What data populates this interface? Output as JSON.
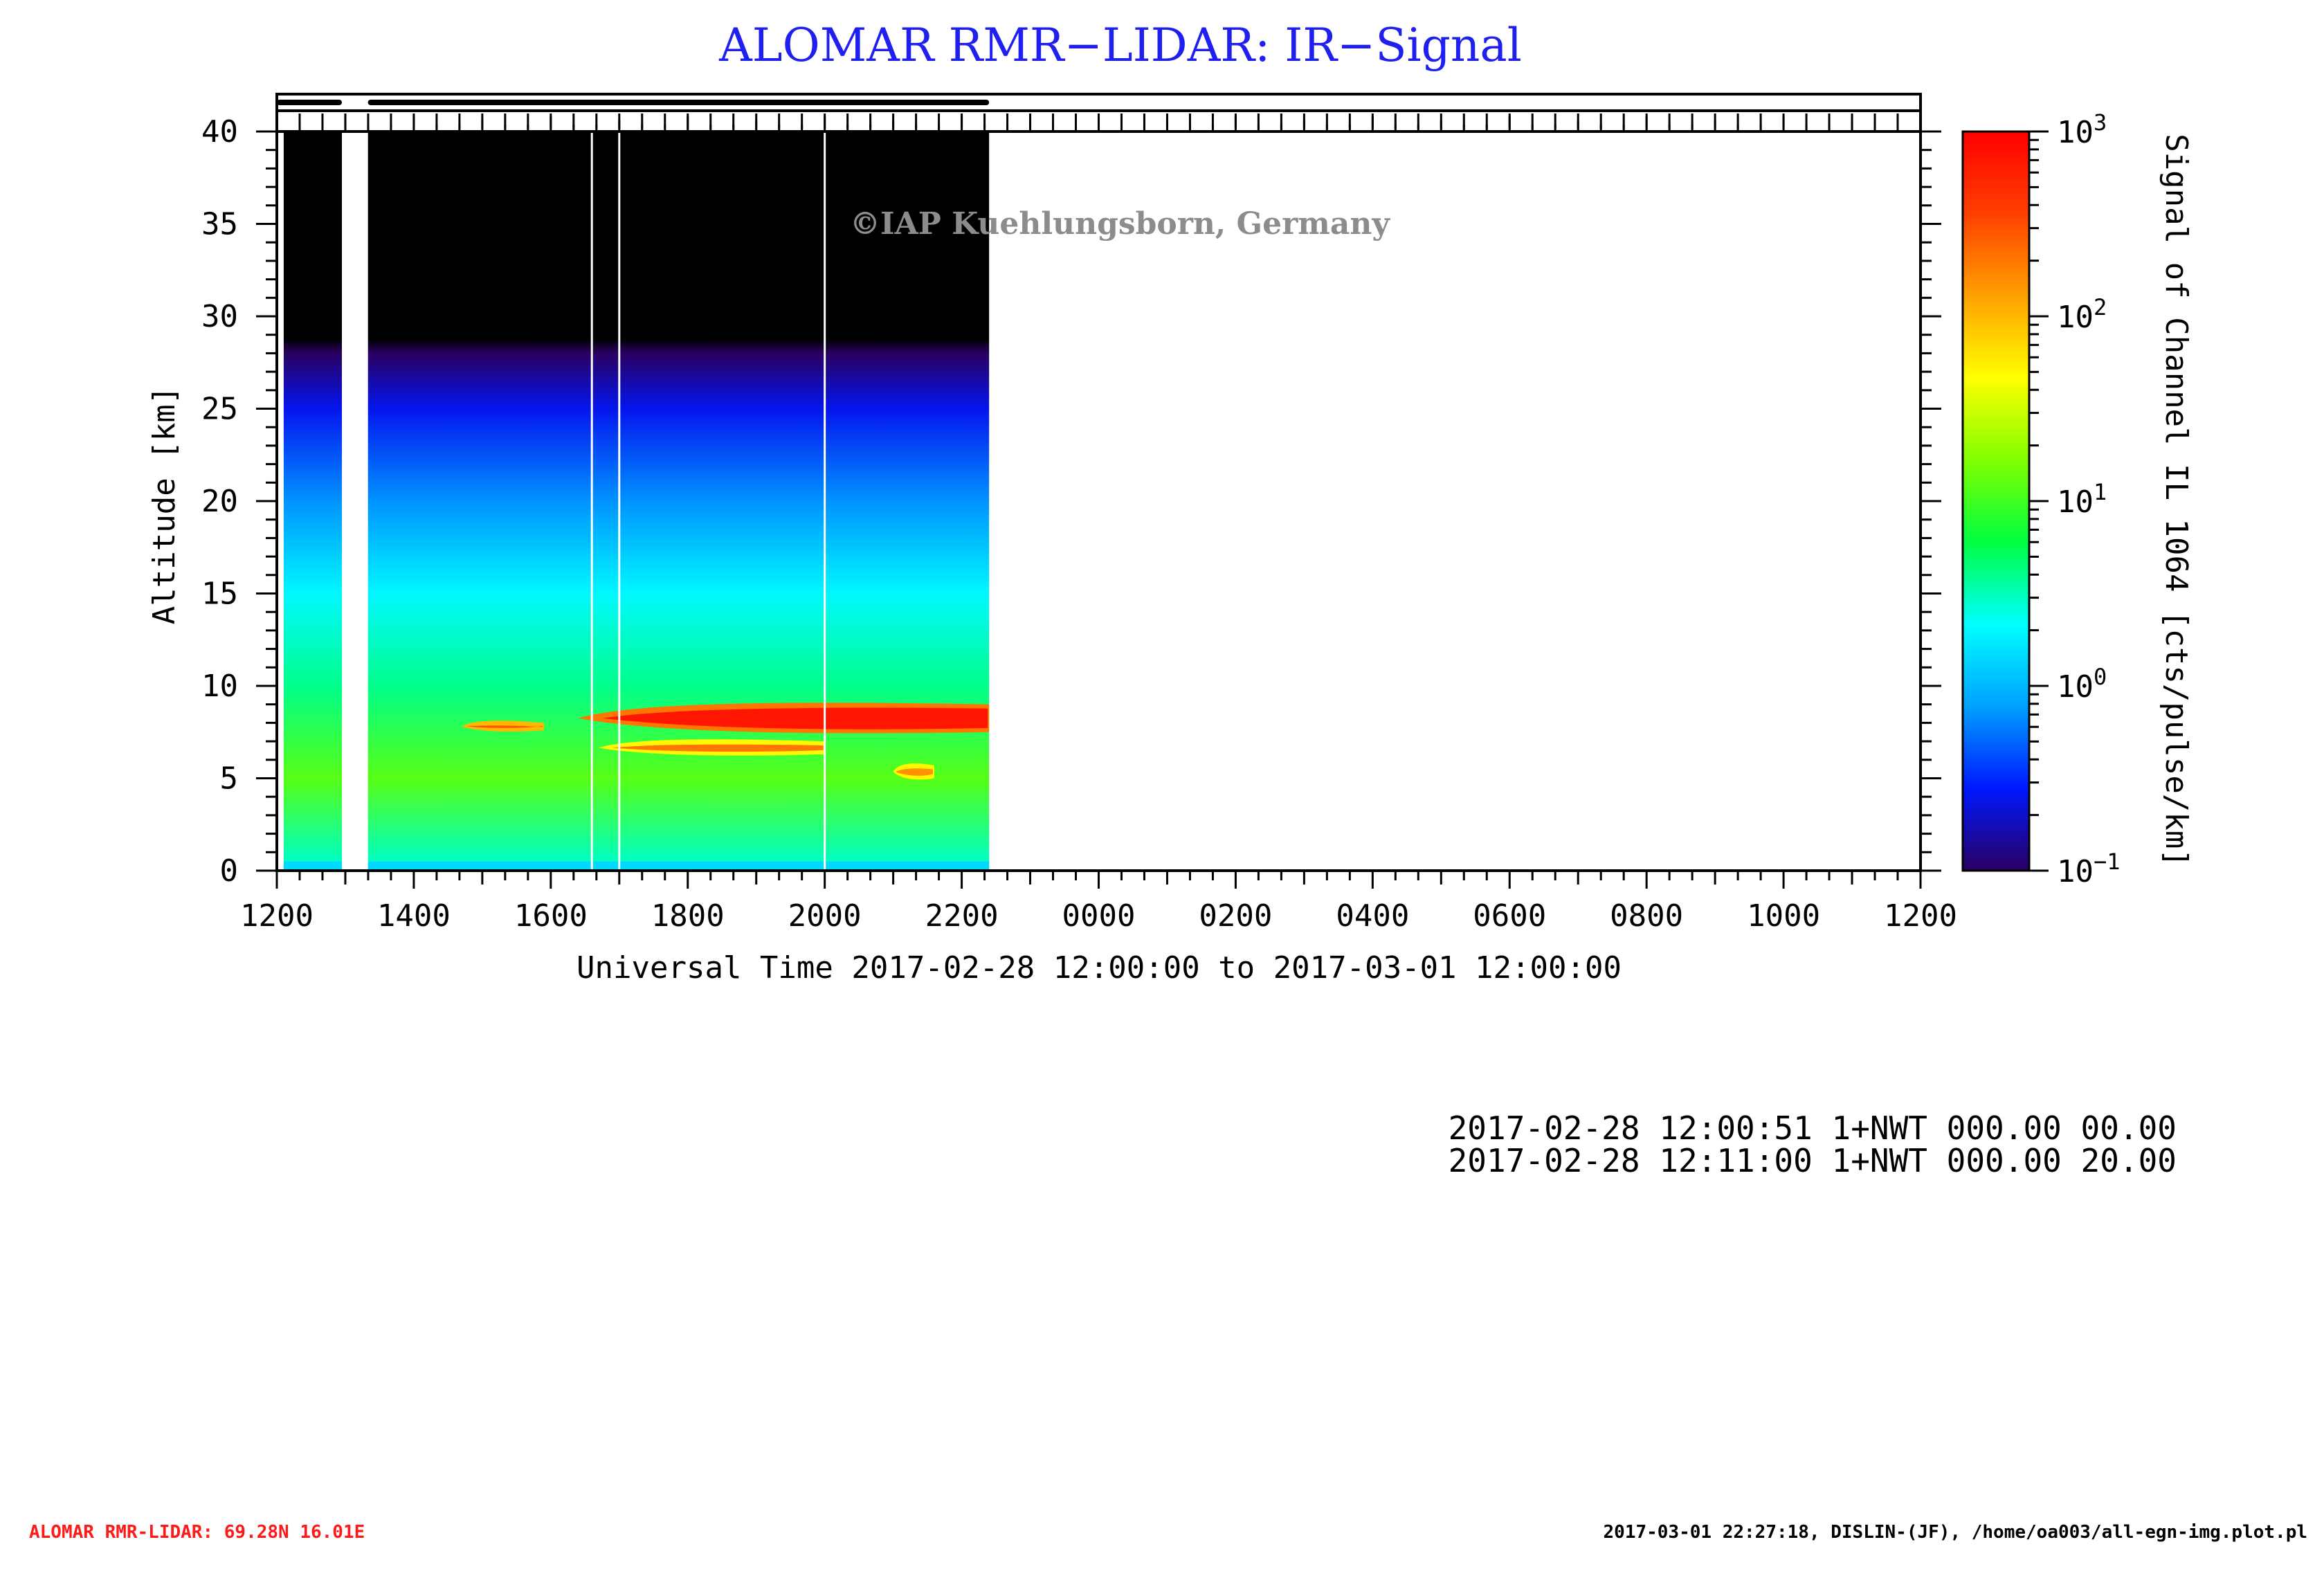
{
  "chart_data": {
    "type": "heatmap",
    "title": "ALOMAR RMR−LIDAR: IR−Signal",
    "xlabel": "Universal Time 2017-02-28 12:00:00 to 2017-03-01 12:00:00",
    "ylabel": "Altitude [km]",
    "colorbar_label": "Signal of Channel IL 1064 [cts/pulse/km]",
    "x_range_hours_ut": [
      12,
      36
    ],
    "x_tick_labels": [
      "1200",
      "1400",
      "1600",
      "1800",
      "2000",
      "2200",
      "0000",
      "0200",
      "0400",
      "0600",
      "0800",
      "1000",
      "1200"
    ],
    "ylim": [
      0,
      40
    ],
    "y_tick_labels": [
      "0",
      "5",
      "10",
      "15",
      "20",
      "25",
      "30",
      "35",
      "40"
    ],
    "colorbar_scale": "log",
    "colorbar_range": [
      0.1,
      1000
    ],
    "colorbar_tick_labels": [
      {
        "base": "10",
        "exp": "3"
      },
      {
        "base": "10",
        "exp": "2"
      },
      {
        "base": "10",
        "exp": "1"
      },
      {
        "base": "10",
        "exp": "0"
      },
      {
        "base": "10",
        "exp": "−1"
      }
    ],
    "colormap_stops": [
      "#2a0060",
      "#0018ff",
      "#00a0ff",
      "#00ffff",
      "#00ff40",
      "#80ff00",
      "#ffff00",
      "#ffa000",
      "#ff4000",
      "#ff0000"
    ],
    "measurement_periods_hours_ut": [
      [
        12.0,
        12.95
      ],
      [
        13.33,
        22.4
      ]
    ],
    "data_gap_hours_ut": [
      12.95,
      13.33
    ],
    "data_columns_hours_ut": [
      [
        12.1,
        12.95
      ],
      [
        13.33,
        22.4
      ]
    ],
    "signal_profile_by_altitude_km": [
      {
        "altitude": 0.5,
        "signal": 3
      },
      {
        "altitude": 5,
        "signal": 12
      },
      {
        "altitude": 10,
        "signal": 4
      },
      {
        "altitude": 15,
        "signal": 2
      },
      {
        "altitude": 20,
        "signal": 0.7
      },
      {
        "altitude": 25,
        "signal": 0.25
      },
      {
        "altitude": 28,
        "signal": 0.1
      }
    ],
    "cloud_layers": [
      {
        "start_hour": 16.4,
        "end_hour": 22.4,
        "altitude_km": [
          7.5,
          9.0
        ],
        "signal_range": [
          200,
          700
        ]
      },
      {
        "start_hour": 14.7,
        "end_hour": 15.9,
        "altitude_km": [
          7.6,
          8.0
        ],
        "signal_range": [
          100,
          300
        ]
      },
      {
        "start_hour": 16.7,
        "end_hour": 20.0,
        "altitude_km": [
          6.3,
          7.0
        ],
        "signal_range": [
          50,
          200
        ]
      },
      {
        "start_hour": 21.0,
        "end_hour": 21.6,
        "altitude_km": [
          5.0,
          5.7
        ],
        "signal_range": [
          50,
          150
        ]
      }
    ],
    "grid": false,
    "legend": "colorbar-right"
  },
  "watermark": "©IAP Kuehlungsborn, Germany",
  "info_lines": [
    "2017-02-28 12:00:51 1+NWT 000.00 00.00",
    "2017-02-28 12:11:00 1+NWT 000.00 20.00"
  ],
  "footer_left": "ALOMAR RMR-LIDAR: 69.28N 16.01E",
  "footer_right": "2017-03-01 22:27:18, DISLIN-(JF), /home/oa003/all-egn-img.plot.pl"
}
